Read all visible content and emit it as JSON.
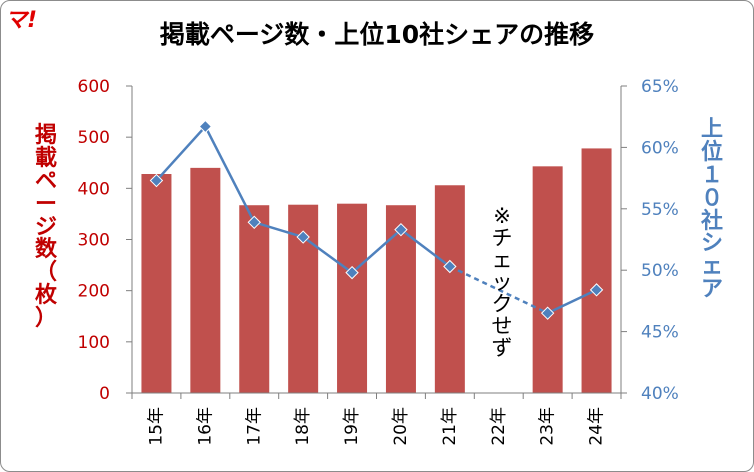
{
  "logo": {
    "text": "マ!"
  },
  "chart_data": {
    "type": "bar",
    "title": "掲載ページ数・上位10社シェアの推移",
    "categories": [
      "15年",
      "16年",
      "17年",
      "18年",
      "19年",
      "20年",
      "21年",
      "22年",
      "23年",
      "24年"
    ],
    "series": [
      {
        "name": "掲載ページ数（枚）",
        "type": "bar",
        "axis": "left",
        "color": "#c0504d",
        "values": [
          428,
          440,
          367,
          368,
          370,
          367,
          406,
          null,
          443,
          478
        ]
      },
      {
        "name": "上位１０社シェア",
        "type": "line",
        "axis": "right",
        "color": "#4f81bd",
        "values": [
          57.3,
          61.7,
          53.9,
          52.7,
          49.8,
          53.3,
          50.3,
          null,
          46.5,
          48.4
        ]
      }
    ],
    "ylabel": "掲載ページ数（枚）",
    "y2label": "上位１０社シェア",
    "ylim": [
      0,
      600
    ],
    "yticks": [
      "600",
      "500",
      "400",
      "300",
      "200",
      "100",
      "0"
    ],
    "y2lim": [
      40,
      65
    ],
    "y2ticks": [
      "65%",
      "60%",
      "55%",
      "50%",
      "45%",
      "40%"
    ],
    "annotation": "※チェックせず",
    "grid": false,
    "legend": "none"
  }
}
